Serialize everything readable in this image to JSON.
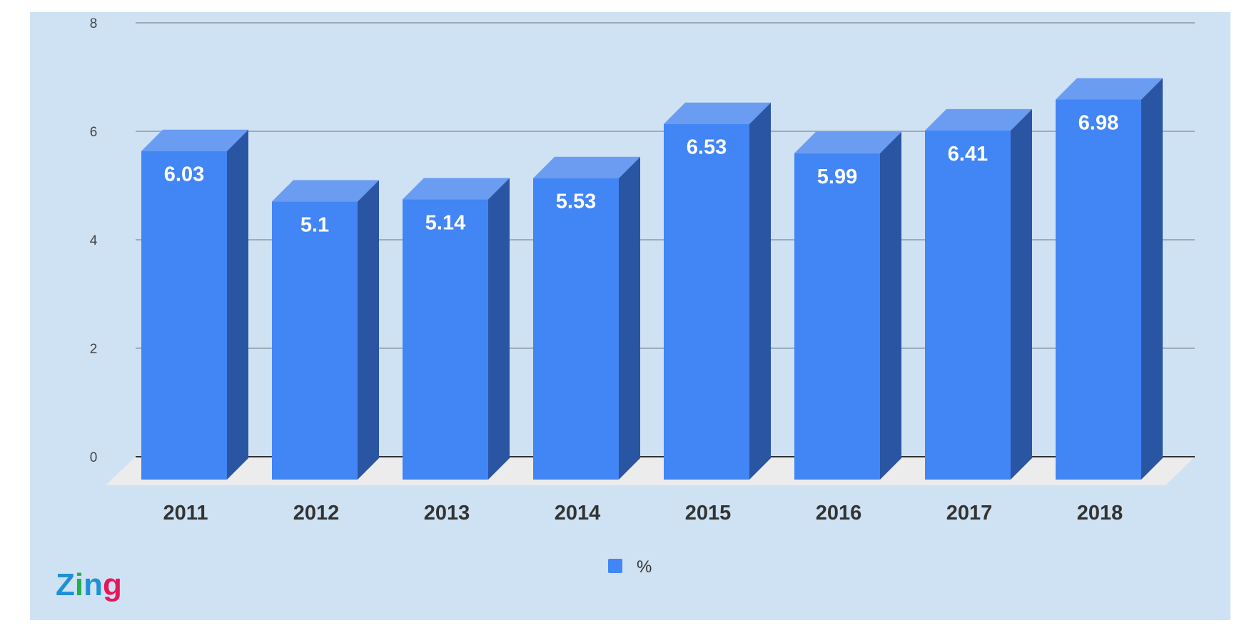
{
  "colors": {
    "background": "#cfe2f3",
    "bar_front": "#4285f4",
    "bar_side": "#2a55a3",
    "bar_top": "#6a9cf2",
    "grid": "#7f8a94",
    "floor": "#ececec",
    "axis": "#333333"
  },
  "logo": {
    "text": "Zing",
    "letter_colors": [
      "#1f8fd6",
      "#23b04a",
      "#1f8fd6",
      "#e4185b"
    ]
  },
  "chart_data": {
    "type": "bar",
    "categories": [
      "2011",
      "2012",
      "2013",
      "2014",
      "2015",
      "2016",
      "2017",
      "2018"
    ],
    "series": [
      {
        "name": "%",
        "values": [
          6.03,
          5.1,
          5.14,
          5.53,
          6.53,
          5.99,
          6.41,
          6.98
        ],
        "labels": [
          "6.03",
          "5.1",
          "5.14",
          "5.53",
          "6.53",
          "5.99",
          "6.41",
          "6.98"
        ]
      }
    ],
    "ylim": [
      0,
      8
    ],
    "yticks": [
      0,
      2,
      4,
      6,
      8
    ],
    "ytick_labels": [
      "0",
      "2",
      "4",
      "6",
      "8"
    ],
    "grid": true,
    "legend": {
      "position": "bottom-center",
      "label": "%"
    },
    "style": "3d-column"
  }
}
